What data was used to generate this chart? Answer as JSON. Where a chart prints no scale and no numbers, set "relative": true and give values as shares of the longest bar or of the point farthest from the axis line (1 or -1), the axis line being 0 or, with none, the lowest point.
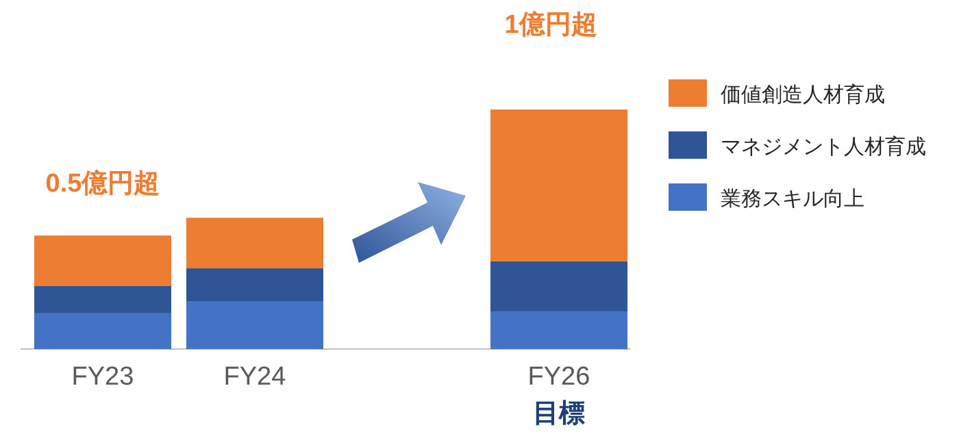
{
  "chart_data": {
    "type": "bar",
    "stacked": true,
    "relative": true,
    "legend": "right",
    "categories": [
      "FY23",
      "FY24",
      null,
      "FY26"
    ],
    "series": [
      {
        "name": "業務スキル向上",
        "color": "#4472c4",
        "values": [
          0.149,
          0.2,
          null,
          0.155
        ]
      },
      {
        "name": "マネジメント人材育成",
        "color": "#2f5597",
        "values": [
          0.114,
          0.137,
          null,
          0.211
        ]
      },
      {
        "name": "価値創造人材育成",
        "color": "#ed7d31",
        "values": [
          0.211,
          0.211,
          null,
          0.634
        ]
      }
    ],
    "annotations": [
      "0.5億円超",
      "1億円超",
      "目標"
    ]
  }
}
